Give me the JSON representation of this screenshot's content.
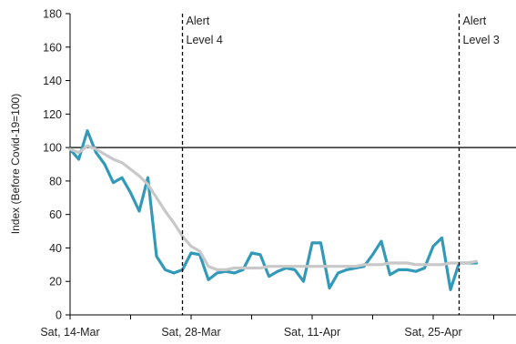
{
  "chart_data": {
    "type": "line",
    "title": "",
    "xlabel": "",
    "ylabel": "Index (Before Covid-19=100)",
    "ylim": [
      0,
      180
    ],
    "y_ticks": [
      0,
      20,
      40,
      60,
      80,
      100,
      120,
      140,
      160,
      180
    ],
    "x_tick_labels": [
      "Sat, 14-Mar",
      "Sat, 28-Mar",
      "Sat, 11-Apr",
      "Sat, 25-Apr"
    ],
    "x": [
      "2020-03-14",
      "2020-03-15",
      "2020-03-16",
      "2020-03-17",
      "2020-03-18",
      "2020-03-19",
      "2020-03-20",
      "2020-03-21",
      "2020-03-22",
      "2020-03-23",
      "2020-03-24",
      "2020-03-25",
      "2020-03-26",
      "2020-03-27",
      "2020-03-28",
      "2020-03-29",
      "2020-03-30",
      "2020-03-31",
      "2020-04-01",
      "2020-04-02",
      "2020-04-03",
      "2020-04-04",
      "2020-04-05",
      "2020-04-06",
      "2020-04-07",
      "2020-04-08",
      "2020-04-09",
      "2020-04-10",
      "2020-04-11",
      "2020-04-12",
      "2020-04-13",
      "2020-04-14",
      "2020-04-15",
      "2020-04-16",
      "2020-04-17",
      "2020-04-18",
      "2020-04-19",
      "2020-04-20",
      "2020-04-21",
      "2020-04-22",
      "2020-04-23",
      "2020-04-24",
      "2020-04-25",
      "2020-04-26",
      "2020-04-27",
      "2020-04-28",
      "2020-04-29",
      "2020-04-30"
    ],
    "series": [
      {
        "color": "#3399b8",
        "values": [
          99,
          93,
          110,
          97,
          90,
          79,
          82,
          73,
          62,
          82,
          35,
          27,
          25,
          27,
          37,
          36,
          21,
          25,
          26,
          25,
          27,
          37,
          36,
          23,
          26,
          28,
          27,
          20,
          43,
          43,
          16,
          25,
          27,
          28,
          29,
          36,
          44,
          24,
          27,
          27,
          26,
          28,
          41,
          46,
          15,
          31,
          31,
          31
        ]
      },
      {
        "color": "#c8c8c8",
        "values": [
          99,
          97,
          101,
          99,
          96,
          93,
          91,
          87,
          83,
          78,
          70,
          62,
          55,
          47,
          41,
          38,
          29,
          27,
          27,
          28,
          28,
          28,
          28,
          29,
          29,
          29,
          29,
          29,
          29,
          29,
          29,
          29,
          29,
          29,
          30,
          30,
          30,
          31,
          31,
          31,
          30,
          30,
          30,
          30,
          31,
          31,
          31,
          32
        ]
      }
    ],
    "reference_line": 100,
    "annotations": [
      {
        "date": "2020-03-27",
        "line1": "Alert",
        "line2": "Level 4"
      },
      {
        "date": "2020-04-28",
        "line1": "Alert",
        "line2": "Level 3"
      }
    ],
    "grid": false,
    "legend": "none"
  }
}
